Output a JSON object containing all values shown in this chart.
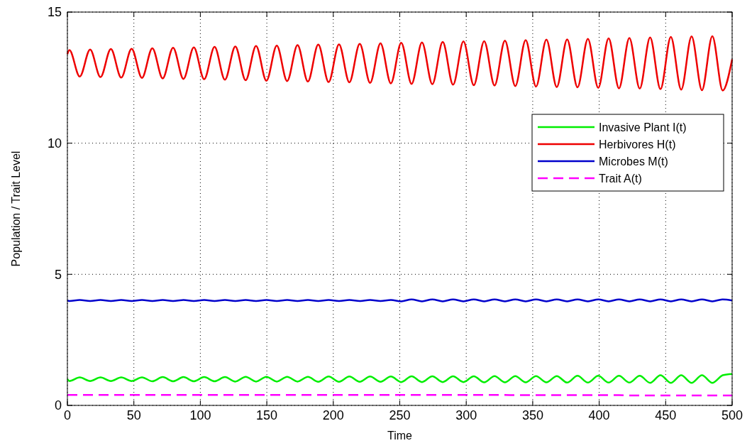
{
  "chart_data": {
    "type": "line",
    "xlabel": "Time",
    "ylabel": "Population / Trait Level",
    "x": [
      0,
      1.5,
      9.3,
      17.1,
      24.9,
      32.7,
      40.5,
      48.3,
      56.1,
      63.9,
      71.7,
      79.5,
      87.3,
      95.1,
      102.9,
      110.7,
      118.5,
      126.3,
      134.1,
      141.9,
      149.7,
      157.5,
      165.3,
      173.1,
      180.9,
      188.7,
      196.5,
      204.3,
      212.1,
      219.9,
      227.7,
      235.5,
      243.3,
      251.1,
      258.9,
      266.7,
      274.5,
      282.3,
      290.1,
      297.9,
      305.7,
      313.5,
      321.3,
      329.1,
      336.9,
      344.7,
      352.5,
      360.3,
      368.1,
      375.9,
      383.7,
      391.5,
      399.3,
      407.1,
      414.9,
      422.7,
      430.5,
      438.3,
      446.1,
      453.9,
      461.7,
      469.5,
      477.3,
      485.1,
      492.9,
      500
    ],
    "series": [
      {
        "name": "Invasive Plant I(t)",
        "color": "#00ee00",
        "values": [
          1.0,
          0.93,
          1.07,
          0.93,
          1.07,
          0.93,
          1.07,
          0.93,
          1.07,
          0.92,
          1.08,
          0.92,
          1.08,
          0.92,
          1.08,
          0.92,
          1.08,
          0.91,
          1.09,
          0.91,
          1.09,
          0.91,
          1.09,
          0.91,
          1.09,
          0.9,
          1.1,
          0.9,
          1.1,
          0.9,
          1.1,
          0.9,
          1.1,
          0.89,
          1.11,
          0.89,
          1.11,
          0.89,
          1.11,
          0.89,
          1.11,
          0.88,
          1.12,
          0.88,
          1.12,
          0.88,
          1.12,
          0.88,
          1.12,
          0.87,
          1.13,
          0.87,
          1.13,
          0.87,
          1.13,
          0.87,
          1.13,
          0.86,
          1.15,
          0.86,
          1.15,
          0.86,
          1.15,
          0.86,
          1.15,
          1.2
        ]
      },
      {
        "name": "Herbivores H(t)",
        "color": "#ee0000",
        "values": [
          13.4,
          13.55,
          12.54,
          13.57,
          12.52,
          13.59,
          12.5,
          13.6,
          12.49,
          13.62,
          12.47,
          13.64,
          12.45,
          13.65,
          12.44,
          13.67,
          12.42,
          13.69,
          12.4,
          13.71,
          12.38,
          13.72,
          12.37,
          13.74,
          12.35,
          13.76,
          12.33,
          13.77,
          12.32,
          13.79,
          12.3,
          13.81,
          12.28,
          13.83,
          12.26,
          13.84,
          12.25,
          13.86,
          12.23,
          13.88,
          12.21,
          13.89,
          12.2,
          13.91,
          12.18,
          13.93,
          12.16,
          13.95,
          12.14,
          13.96,
          12.13,
          13.98,
          12.11,
          14.0,
          12.09,
          14.01,
          12.08,
          14.03,
          12.06,
          14.05,
          12.04,
          14.07,
          12.02,
          14.08,
          12.01,
          13.2
        ]
      },
      {
        "name": "Microbes M(t)",
        "color": "#0000cc",
        "values": [
          4.0,
          3.98,
          4.02,
          3.98,
          4.02,
          3.98,
          4.02,
          3.98,
          4.02,
          3.98,
          4.02,
          3.98,
          4.02,
          3.98,
          4.02,
          3.98,
          4.02,
          3.98,
          4.02,
          3.98,
          4.02,
          3.98,
          4.02,
          3.98,
          4.02,
          3.98,
          4.02,
          3.98,
          4.02,
          3.98,
          4.02,
          3.98,
          4.02,
          3.97,
          4.04,
          3.97,
          4.04,
          3.97,
          4.04,
          3.97,
          4.04,
          3.97,
          4.04,
          3.97,
          4.04,
          3.97,
          4.04,
          3.97,
          4.04,
          3.97,
          4.04,
          3.97,
          4.04,
          3.97,
          4.04,
          3.97,
          4.04,
          3.97,
          4.04,
          3.97,
          4.04,
          3.97,
          4.04,
          3.97,
          4.04,
          4.0
        ]
      },
      {
        "name": "Trait A(t)",
        "color": "#ff00ff",
        "line_style": "dashed",
        "values": [
          0.4,
          0.4,
          0.4,
          0.4,
          0.4,
          0.4,
          0.4,
          0.4,
          0.4,
          0.4,
          0.4,
          0.4,
          0.4,
          0.4,
          0.4,
          0.4,
          0.4,
          0.4,
          0.4,
          0.4,
          0.4,
          0.4,
          0.4,
          0.4,
          0.4,
          0.4,
          0.4,
          0.4,
          0.4,
          0.4,
          0.4,
          0.4,
          0.4,
          0.4,
          0.4,
          0.4,
          0.4,
          0.4,
          0.4,
          0.4,
          0.4,
          0.4,
          0.4,
          0.4,
          0.39,
          0.39,
          0.39,
          0.39,
          0.39,
          0.39,
          0.39,
          0.39,
          0.39,
          0.39,
          0.39,
          0.38,
          0.38,
          0.38,
          0.38,
          0.38,
          0.38,
          0.38,
          0.38,
          0.38,
          0.38,
          0.38
        ]
      }
    ],
    "xlim": [
      0,
      500
    ],
    "xticks": [
      0,
      50,
      100,
      150,
      200,
      250,
      300,
      350,
      400,
      450,
      500
    ],
    "ylim": [
      0,
      15
    ],
    "yticks": [
      0,
      5,
      10,
      15
    ],
    "grid": true,
    "legend": "top right",
    "line_style": "solid"
  }
}
